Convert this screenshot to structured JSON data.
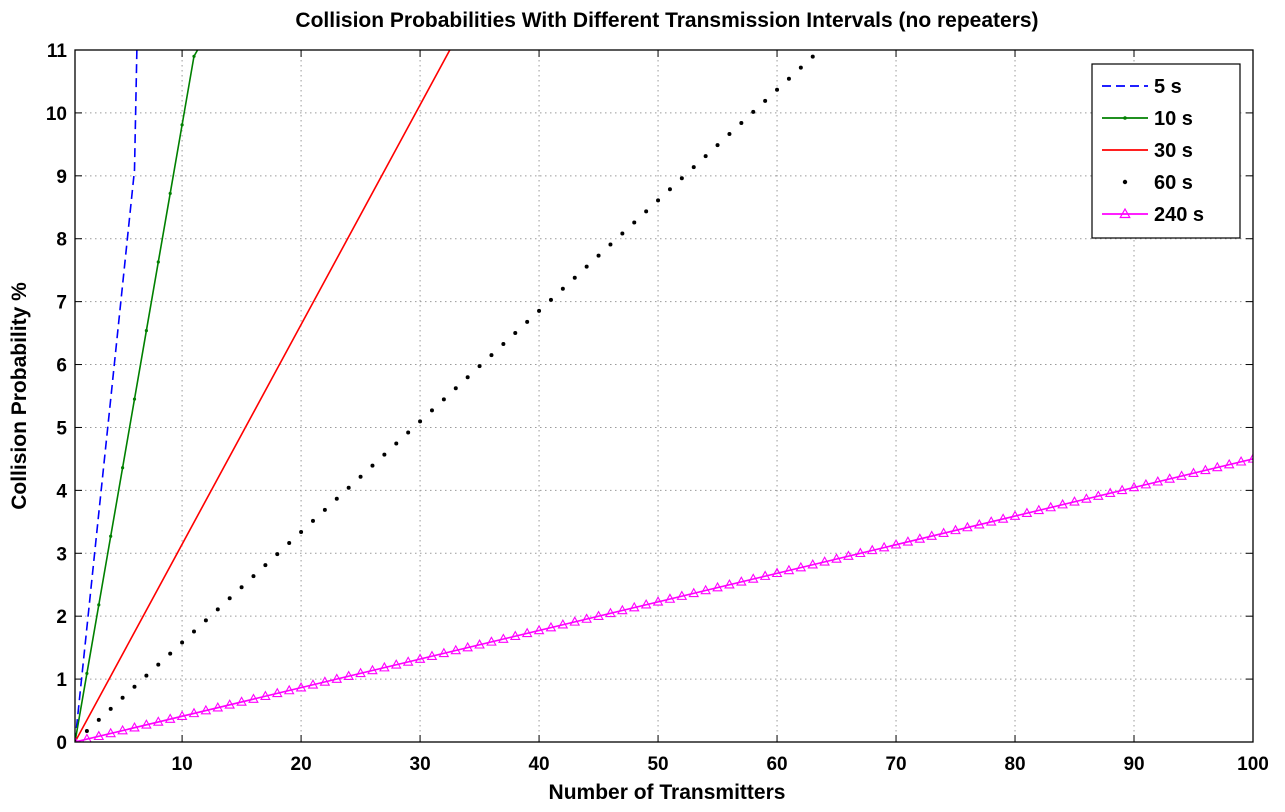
{
  "chart_data": {
    "type": "line",
    "title": "Collision Probabilities With Different Transmission Intervals (no repeaters)",
    "xlabel": "Number of Transmitters",
    "ylabel": "Collision Probability %",
    "xlim": [
      1,
      100
    ],
    "ylim": [
      0,
      11
    ],
    "xticks": [
      10,
      20,
      30,
      40,
      50,
      60,
      70,
      80,
      90,
      100
    ],
    "yticks": [
      0,
      1,
      2,
      3,
      4,
      5,
      6,
      7,
      8,
      9,
      10,
      11
    ],
    "grid": true,
    "legend_position": "top-right",
    "series": [
      {
        "name": "5 s",
        "color": "#0000ff",
        "line_style": "dashed",
        "marker": "none",
        "x": [
          1,
          2,
          3,
          4,
          5,
          6,
          6.2
        ],
        "y": [
          0,
          1.82,
          3.64,
          5.45,
          7.27,
          9.09,
          11
        ]
      },
      {
        "name": "10 s",
        "color": "#008000",
        "line_style": "solid",
        "marker": "point",
        "x": [
          1,
          2,
          3,
          4,
          5,
          6,
          7,
          8,
          9,
          10,
          11,
          11.3
        ],
        "y": [
          0,
          1.09,
          2.18,
          3.27,
          4.36,
          5.45,
          6.54,
          7.63,
          8.72,
          9.81,
          10.9,
          11
        ]
      },
      {
        "name": "30 s",
        "color": "#ff0000",
        "line_style": "solid",
        "marker": "none",
        "x": [
          1,
          32.5
        ],
        "y": [
          0,
          11
        ]
      },
      {
        "name": "60 s",
        "color": "#000000",
        "line_style": "none",
        "marker": "dot",
        "x": [
          1,
          63.6
        ],
        "y": [
          0,
          11
        ]
      },
      {
        "name": "240 s",
        "color": "#ff00ff",
        "line_style": "solid",
        "marker": "triangle",
        "x": [
          1,
          100
        ],
        "y": [
          0,
          4.5
        ]
      }
    ]
  }
}
